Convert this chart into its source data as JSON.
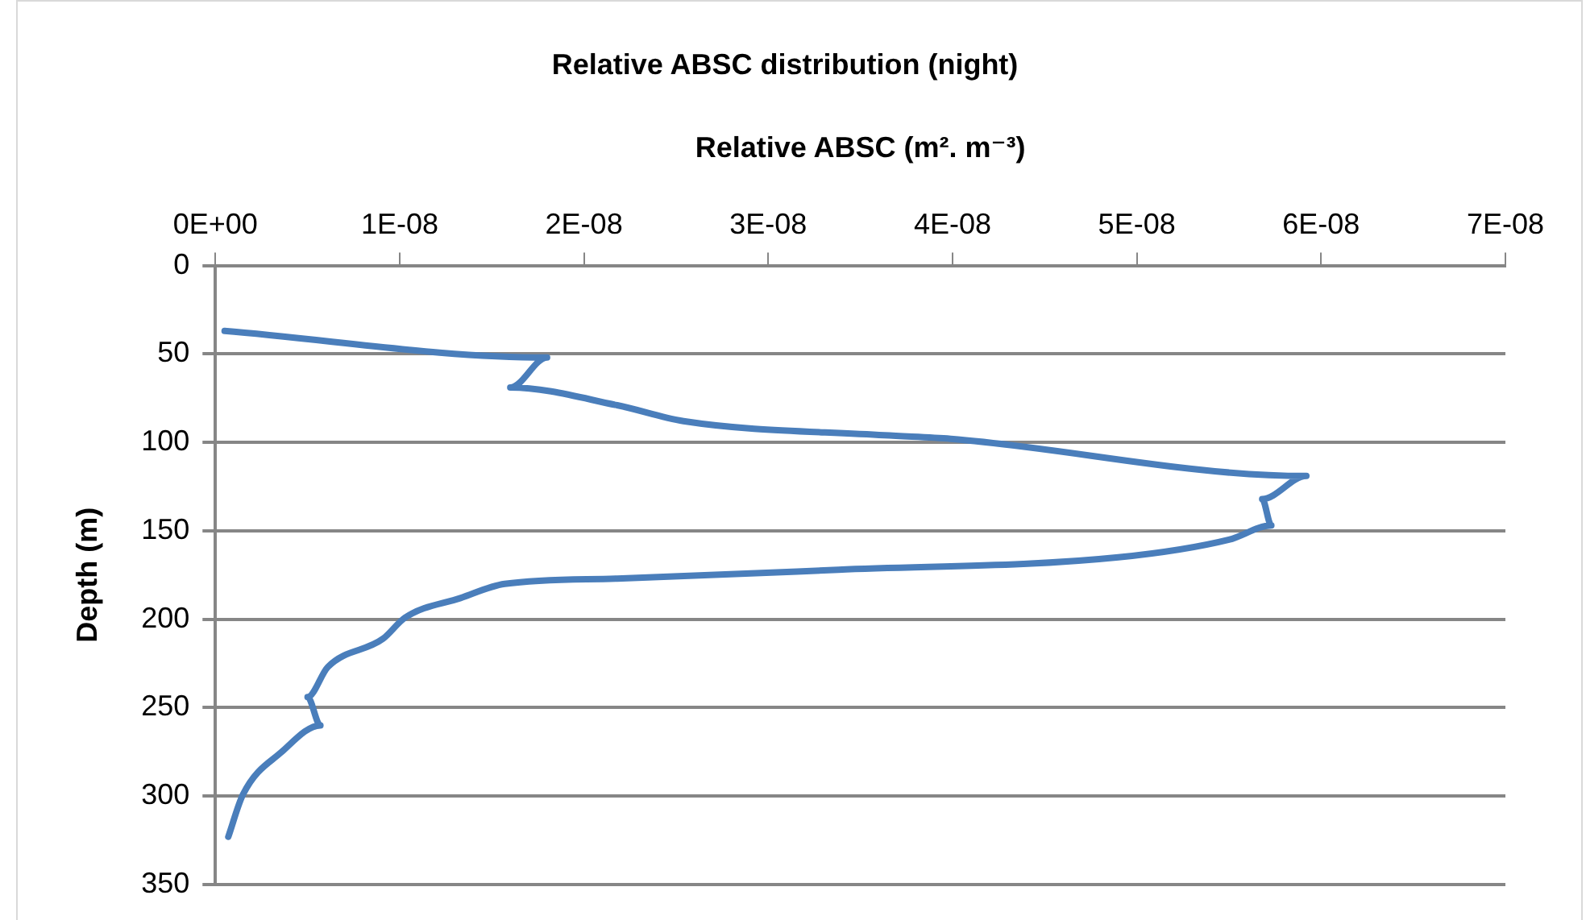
{
  "chart_data": {
    "type": "line",
    "title": "Relative ABSC distribution (night)",
    "xlabel": "Relative ABSC (m². m⁻³)",
    "ylabel": "Depth (m)",
    "x": [
      5e-10,
      1.8e-08,
      1.6e-08,
      2.18e-08,
      2.54e-08,
      3.63e-08,
      3.99e-08,
      5.92e-08,
      5.68e-08,
      5.73e-08,
      5.5e-08,
      4.9e-08,
      3.38e-08,
      2.18e-08,
      1.57e-08,
      1.33e-08,
      1.03e-08,
      9.1e-09,
      6.1e-09,
      5e-09,
      5.7e-09,
      3.6e-09,
      1.5e-09,
      7e-10
    ],
    "series": [
      {
        "color": "#4a7ebb",
        "values": [
          37,
          52,
          69,
          79,
          88,
          96,
          98,
          119,
          132,
          147,
          155,
          165,
          172,
          177,
          180,
          188,
          199,
          211,
          227,
          244,
          260,
          275,
          299,
          323
        ]
      }
    ],
    "xlim": [
      0,
      7e-08
    ],
    "xticks": [
      {
        "value": 0,
        "label": "0E+00"
      },
      {
        "value": 1e-08,
        "label": "1E-08"
      },
      {
        "value": 2e-08,
        "label": "2E-08"
      },
      {
        "value": 3e-08,
        "label": "3E-08"
      },
      {
        "value": 4e-08,
        "label": "4E-08"
      },
      {
        "value": 5e-08,
        "label": "5E-08"
      },
      {
        "value": 6e-08,
        "label": "6E-08"
      },
      {
        "value": 7e-08,
        "label": "7E-08"
      }
    ],
    "ylim": [
      350,
      0
    ],
    "yticks": [
      0,
      50,
      100,
      150,
      200,
      250,
      300,
      350
    ],
    "grid": "y",
    "legend": false,
    "marker": "none",
    "line_style": "solid"
  }
}
